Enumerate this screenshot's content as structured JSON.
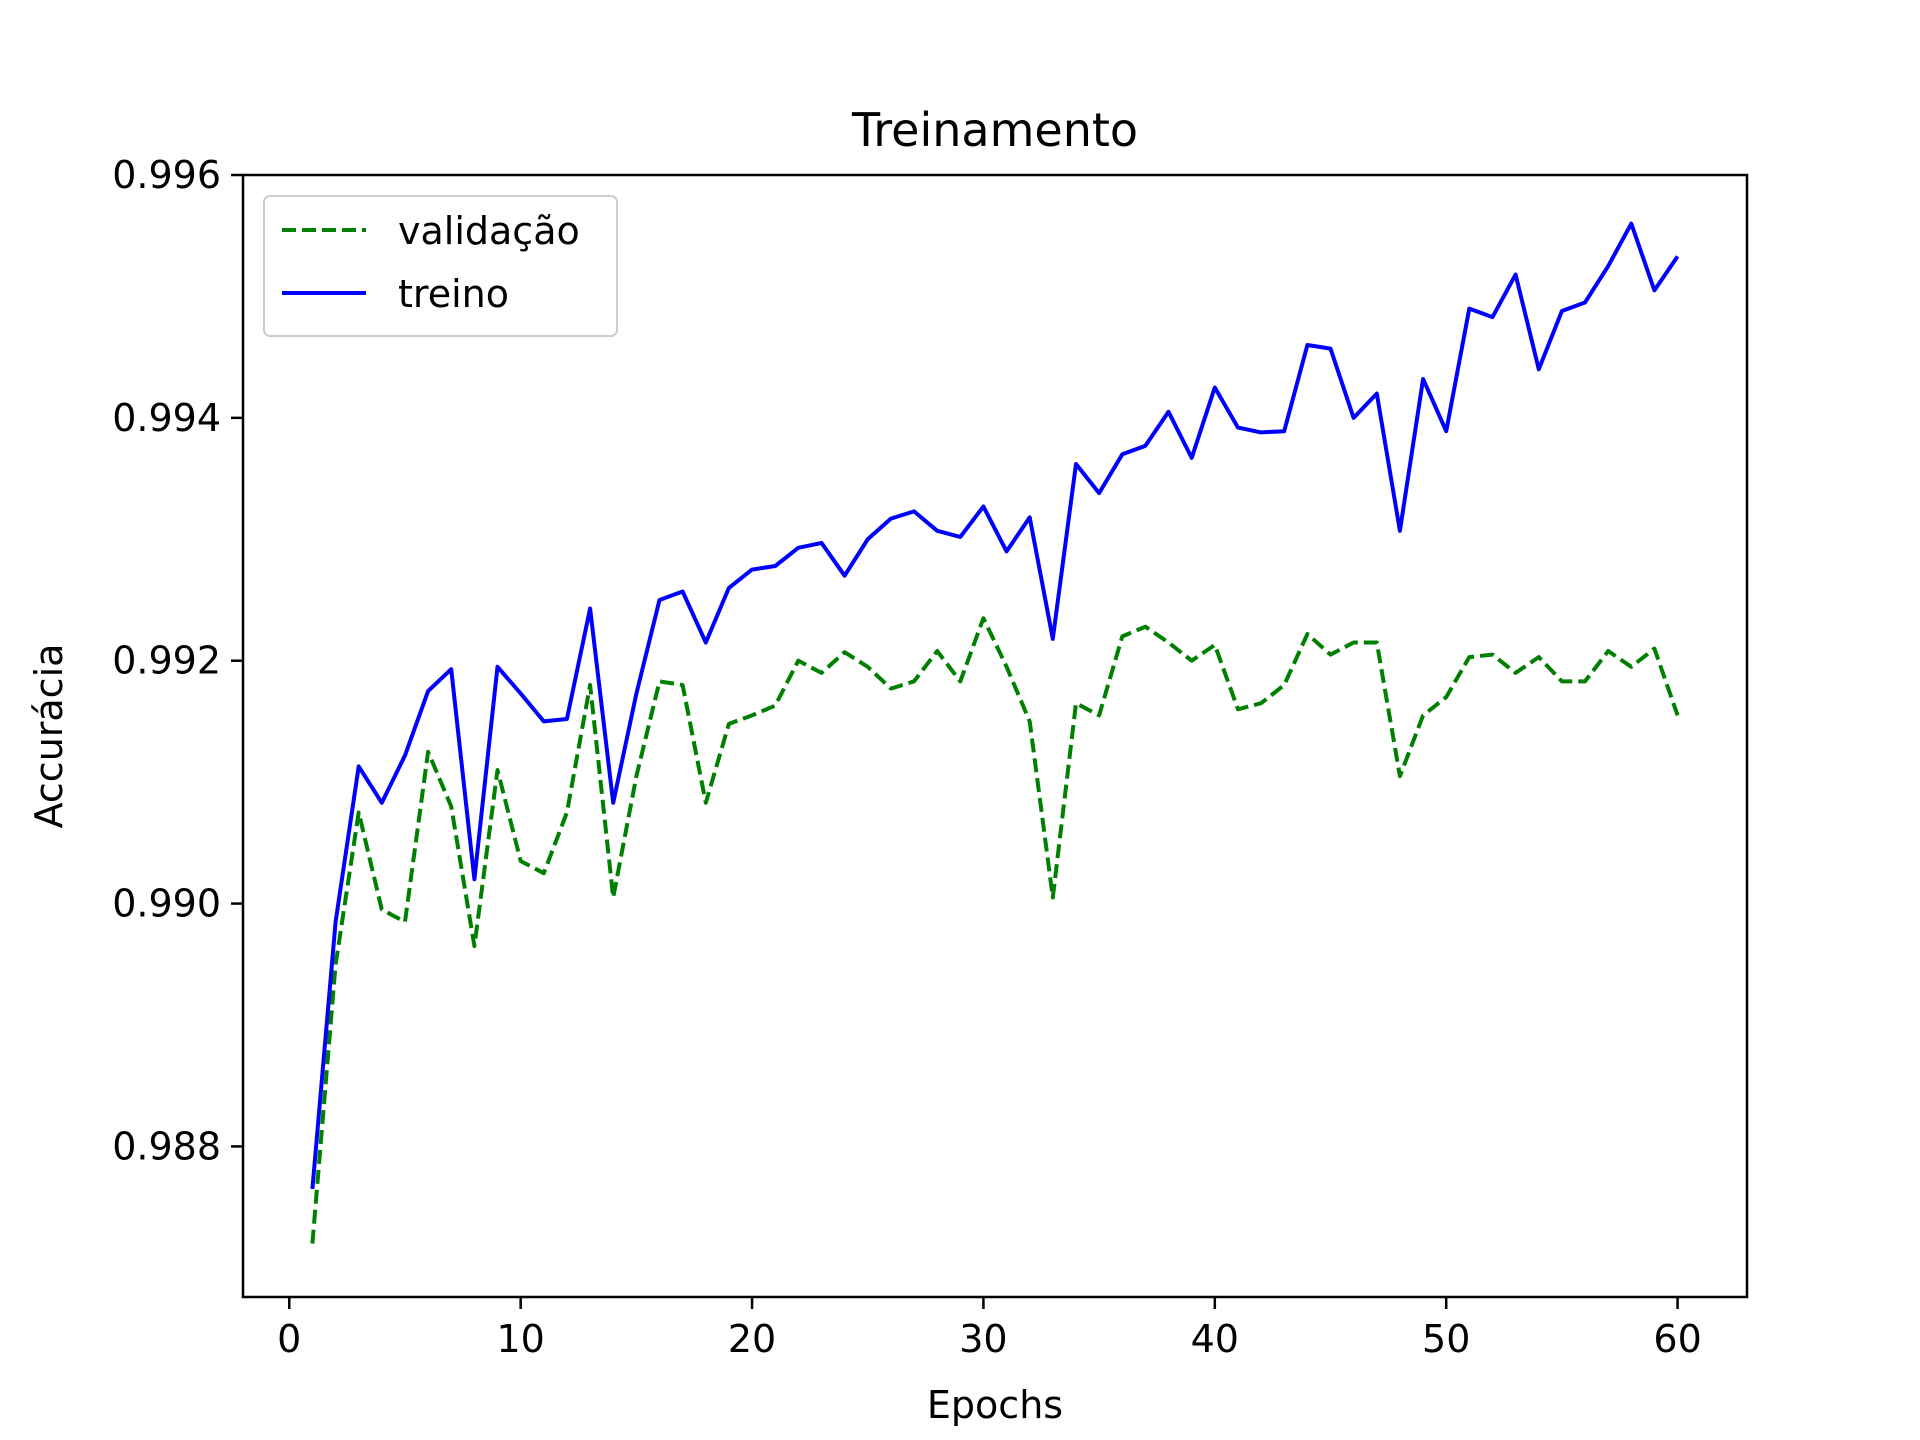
{
  "chart_data": {
    "type": "line",
    "title": "Treinamento",
    "xlabel": "Epochs",
    "ylabel": "Accurácia",
    "xlim": [
      -2,
      63
    ],
    "ylim": [
      0.98676,
      0.996
    ],
    "xticks": [
      0,
      10,
      20,
      30,
      40,
      50,
      60
    ],
    "xtick_labels": [
      "0",
      "10",
      "20",
      "30",
      "40",
      "50",
      "60"
    ],
    "yticks": [
      0.988,
      0.99,
      0.992,
      0.994,
      0.996
    ],
    "ytick_labels": [
      "0.988",
      "0.990",
      "0.992",
      "0.994",
      "0.996"
    ],
    "grid": false,
    "legend_position": "top-left",
    "x": [
      1,
      2,
      3,
      4,
      5,
      6,
      7,
      8,
      9,
      10,
      11,
      12,
      13,
      14,
      15,
      16,
      17,
      18,
      19,
      20,
      21,
      22,
      23,
      24,
      25,
      26,
      27,
      28,
      29,
      30,
      31,
      32,
      33,
      34,
      35,
      36,
      37,
      38,
      39,
      40,
      41,
      42,
      43,
      44,
      45,
      46,
      47,
      48,
      49,
      50,
      51,
      52,
      53,
      54,
      55,
      56,
      57,
      58,
      59,
      60
    ],
    "series": [
      {
        "name": "validação",
        "color": "#008000",
        "style": "dashed",
        "values": [
          0.9872,
          0.9895,
          0.99075,
          0.98995,
          0.98985,
          0.99125,
          0.9908,
          0.98965,
          0.9911,
          0.99035,
          0.99025,
          0.99075,
          0.9918,
          0.99005,
          0.99105,
          0.99183,
          0.9918,
          0.99083,
          0.99148,
          0.99155,
          0.99163,
          0.992,
          0.9919,
          0.99207,
          0.99195,
          0.99177,
          0.99183,
          0.99208,
          0.99183,
          0.99235,
          0.99195,
          0.9915,
          0.99005,
          0.99165,
          0.99155,
          0.9922,
          0.99228,
          0.99215,
          0.992,
          0.99213,
          0.9916,
          0.99165,
          0.9918,
          0.99222,
          0.99205,
          0.99215,
          0.99215,
          0.99105,
          0.99155,
          0.9917,
          0.99203,
          0.99205,
          0.9919,
          0.99203,
          0.99183,
          0.99183,
          0.99208,
          0.99195,
          0.9921,
          0.99155
        ]
      },
      {
        "name": "treino",
        "color": "#0000ff",
        "style": "solid",
        "values": [
          0.98765,
          0.98985,
          0.99113,
          0.99083,
          0.99122,
          0.99175,
          0.99193,
          0.9902,
          0.99195,
          0.99173,
          0.9915,
          0.99152,
          0.99243,
          0.99083,
          0.99173,
          0.9925,
          0.99257,
          0.99215,
          0.9926,
          0.99275,
          0.99278,
          0.99293,
          0.99297,
          0.9927,
          0.993,
          0.99317,
          0.99323,
          0.99307,
          0.99302,
          0.99327,
          0.9929,
          0.99318,
          0.99218,
          0.99362,
          0.99338,
          0.9937,
          0.99377,
          0.99405,
          0.99367,
          0.99425,
          0.99392,
          0.99388,
          0.99389,
          0.9946,
          0.99457,
          0.994,
          0.9942,
          0.99307,
          0.99432,
          0.99389,
          0.9949,
          0.99483,
          0.99518,
          0.9944,
          0.99488,
          0.99495,
          0.99525,
          0.9956,
          0.99505,
          0.99533
        ]
      }
    ]
  }
}
